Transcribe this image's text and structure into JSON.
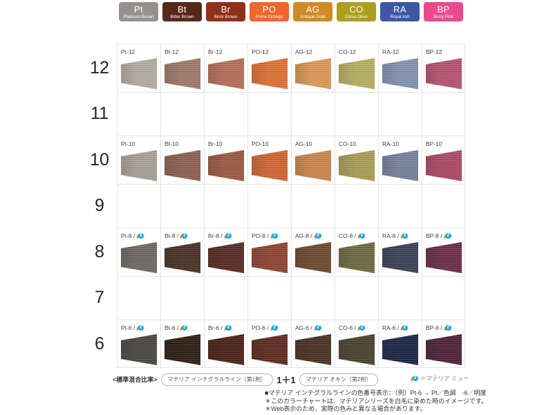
{
  "palette": {
    "series": [
      {
        "code": "Pt",
        "name": "Platinum Brown",
        "chip_color": "#96918d"
      },
      {
        "code": "Bt",
        "name": "Bitter Brown",
        "chip_color": "#55291a"
      },
      {
        "code": "Br",
        "name": "Brick Brown",
        "chip_color": "#8f3018"
      },
      {
        "code": "PO",
        "name": "Prime Orange",
        "chip_color": "#f0662b"
      },
      {
        "code": "AG",
        "name": "Antique Gold",
        "chip_color": "#cf8a28"
      },
      {
        "code": "CO",
        "name": "Citrus Olive",
        "chip_color": "#ab9f1e"
      },
      {
        "code": "RA",
        "name": "Royal Ash",
        "chip_color": "#3d57a5"
      },
      {
        "code": "BP",
        "name": "Berry Pink",
        "chip_color": "#e84a90"
      }
    ]
  },
  "chart_data": {
    "type": "table",
    "columns": [
      "Pt",
      "Bt",
      "Br",
      "PO",
      "AG",
      "CO",
      "RA",
      "BP"
    ],
    "levels": [
      "12",
      "11",
      "10",
      "9",
      "8",
      "7",
      "6"
    ],
    "rows": [
      {
        "level": "12",
        "mu": false,
        "cells": [
          {
            "label": "Pt-12",
            "color": "#b2aba3"
          },
          {
            "label": "Bt-12",
            "color": "#a0786c"
          },
          {
            "label": "Br-12",
            "color": "#b46f59"
          },
          {
            "label": "PO-12",
            "color": "#dd7136"
          },
          {
            "label": "AG-12",
            "color": "#db9757"
          },
          {
            "label": "CO-12",
            "color": "#b5af63"
          },
          {
            "label": "RA-12",
            "color": "#8392ae"
          },
          {
            "label": "BP-12",
            "color": "#b55371"
          }
        ]
      },
      {
        "level": "11",
        "mu": false,
        "cells": []
      },
      {
        "level": "10",
        "mu": false,
        "cells": [
          {
            "label": "Pt-10",
            "color": "#a6a098"
          },
          {
            "label": "Bt-10",
            "color": "#8d6152"
          },
          {
            "label": "Br-10",
            "color": "#9a5a44"
          },
          {
            "label": "PO-10",
            "color": "#cf6635"
          },
          {
            "label": "AG-10",
            "color": "#ca854e"
          },
          {
            "label": "CO-10",
            "color": "#a79e55"
          },
          {
            "label": "RA-10",
            "color": "#77809c"
          },
          {
            "label": "BP-10",
            "color": "#ab4a65"
          }
        ]
      },
      {
        "level": "9",
        "mu": false,
        "cells": []
      },
      {
        "level": "8",
        "mu": true,
        "cells": [
          {
            "label": "Pt-8",
            "color": "#6e6962"
          },
          {
            "label": "Bt-8",
            "color": "#4b3425"
          },
          {
            "label": "Br-8",
            "color": "#592d26"
          },
          {
            "label": "PO-8",
            "color": "#8c4630"
          },
          {
            "label": "AG-8",
            "color": "#6d4a32"
          },
          {
            "label": "CO-8",
            "color": "#6f6941"
          },
          {
            "label": "RA-8",
            "color": "#3a4356"
          },
          {
            "label": "BP-8",
            "color": "#6b2f48"
          }
        ]
      },
      {
        "level": "7",
        "mu": false,
        "cells": []
      },
      {
        "level": "6",
        "mu": true,
        "cells": [
          {
            "label": "Pt-6",
            "color": "#4b4843"
          },
          {
            "label": "Bt-6",
            "color": "#2f1f17"
          },
          {
            "label": "Br-6",
            "color": "#4c231b"
          },
          {
            "label": "PO-6",
            "color": "#5e2d21"
          },
          {
            "label": "AG-6",
            "color": "#4a3526"
          },
          {
            "label": "CO-6",
            "color": "#4a432f"
          },
          {
            "label": "RA-6",
            "color": "#1d2847"
          },
          {
            "label": "BP-6",
            "color": "#4f2338"
          }
        ]
      }
    ]
  },
  "labels": {
    "mu_separator": "/ ",
    "mu_icon_name": "materia-mu-icon",
    "mu_icon_glyph": "ℓ"
  },
  "legend": {
    "mix_label": "<標準混合比率>",
    "pill1": "マテリア インテグラルライン（第1剤）",
    "ratio": "1＋1",
    "pill2": "マテリア オキシ（第2剤）",
    "mu_note": "＝マテリア ミュー"
  },
  "footnotes": [
    "■マテリア インテグラルラインの色番号表示：（例）Pt-6 → Pt／色調　-6／明度",
    "＊このカラーチャートは、マテリアシリーズを白毛に染めた時のイメージです。",
    "＊Web表示のため、実際の色みと異なる場合があります。"
  ]
}
